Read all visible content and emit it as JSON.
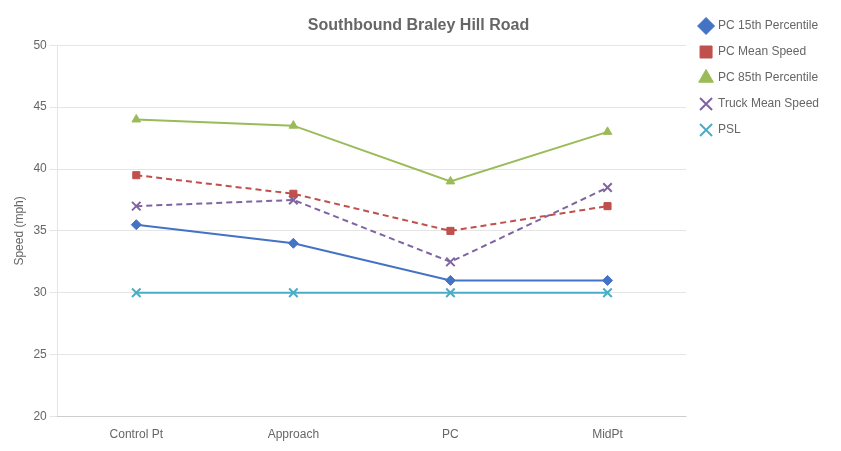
{
  "chart_data": {
    "type": "line",
    "title": "Southbound Braley Hill Road",
    "ylabel": "Speed (mph)",
    "categories": [
      "Control Pt",
      "Approach",
      "PC",
      "MidPt"
    ],
    "series": [
      {
        "name": "PC 15th Percentile",
        "color": "#4472C4",
        "values": [
          35.5,
          34.0,
          31.0,
          31.0
        ],
        "marker": "diamond",
        "line_style": "solid"
      },
      {
        "name": "PC Mean Speed",
        "color": "#C0504D",
        "values": [
          39.5,
          38.0,
          35.0,
          37.0
        ],
        "marker": "square",
        "line_style": "dashed"
      },
      {
        "name": "PC 85th Percentile",
        "color": "#9BBB59",
        "values": [
          44.0,
          43.5,
          39.0,
          43.0
        ],
        "marker": "triangle",
        "line_style": "solid"
      },
      {
        "name": "Truck Mean Speed",
        "color": "#8064A2",
        "values": [
          37.0,
          37.5,
          32.5,
          38.5
        ],
        "marker": "x",
        "line_style": "dashed"
      },
      {
        "name": "PSL",
        "color": "#4BACC6",
        "values": [
          30.0,
          30.0,
          30.0,
          30.0
        ],
        "marker": "x",
        "line_style": "solid"
      }
    ],
    "ylim": [
      20,
      50
    ],
    "yticks": [
      20,
      25,
      30,
      35,
      40,
      45,
      50
    ],
    "grid": true,
    "legend": "right"
  }
}
